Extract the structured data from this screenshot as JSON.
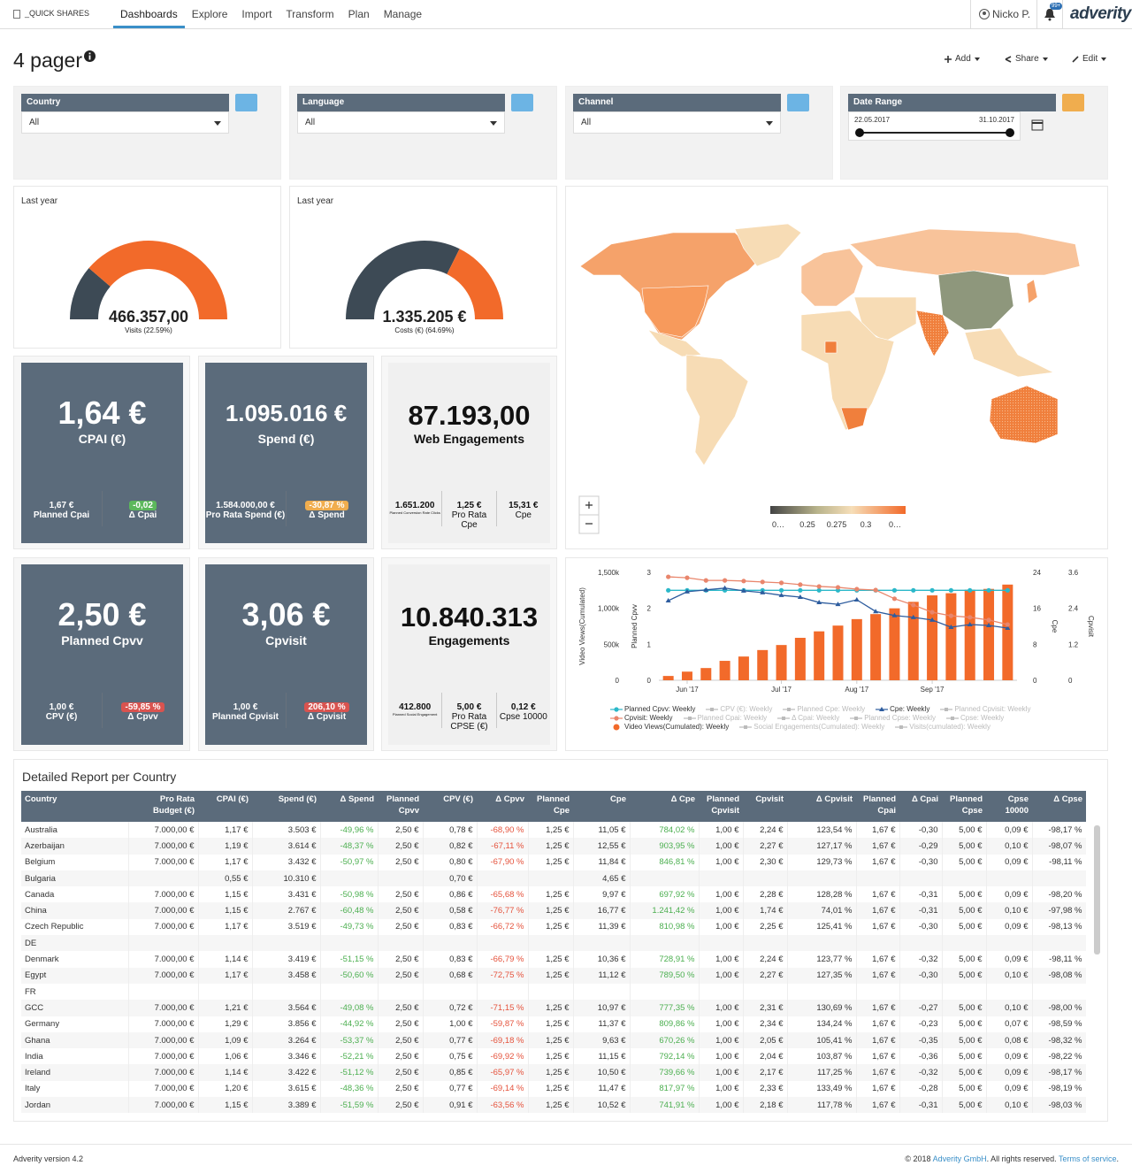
{
  "nav": {
    "brand": "_QUICK SHARES",
    "tabs": [
      "Dashboards",
      "Explore",
      "Import",
      "Transform",
      "Plan",
      "Manage"
    ],
    "user": "Nicko P.",
    "badge": "99+",
    "logo": "adverity"
  },
  "header": {
    "title": "4 pager",
    "actions": [
      "Add",
      "Share",
      "Edit"
    ]
  },
  "filters": [
    {
      "label": "Country",
      "value": "All"
    },
    {
      "label": "Language",
      "value": "All"
    },
    {
      "label": "Channel",
      "value": "All"
    }
  ],
  "date_range": {
    "label": "Date Range",
    "start": "22.05.2017",
    "end": "31.10.2017"
  },
  "gauges": [
    {
      "caption": "Last year",
      "value": "466.357,00",
      "label": "Visits (22.59%)",
      "percent": 22.59
    },
    {
      "caption": "Last year",
      "value": "1.335.205 €",
      "label": "Costs (€) (64.69%)",
      "percent": 64.69
    }
  ],
  "tiles": [
    {
      "value": "1,64 €",
      "label": "CPAI (€)",
      "style": "dark",
      "items": [
        {
          "value": "1,67 €",
          "label": "Planned Cpai"
        },
        {
          "value": "-0,02",
          "label": "Δ Cpai",
          "badge": "green"
        }
      ]
    },
    {
      "value": "1.095.016 €",
      "label": "Spend (€)",
      "style": "dark",
      "items": [
        {
          "value": "1.584.000,00 €",
          "label": "Pro Rata Spend (€)"
        },
        {
          "value": "-30,87 %",
          "label": "Δ Spend",
          "badge": "orange"
        }
      ]
    },
    {
      "value": "87.193,00",
      "label": "Web Engagements",
      "style": "light",
      "items": [
        {
          "value": "1.651.200",
          "label": "Planned Conversion Rate Clicks",
          "small": true
        },
        {
          "value": "1,25 €",
          "label": "Pro Rata Cpe"
        },
        {
          "value": "15,31 €",
          "label": "Cpe"
        }
      ]
    },
    {
      "value": "2,50 €",
      "label": "Planned Cpvv",
      "style": "dark",
      "items": [
        {
          "value": "1,00 €",
          "label": "CPV (€)"
        },
        {
          "value": "-59,85 %",
          "label": "Δ Cpvv",
          "badge": "red"
        }
      ]
    },
    {
      "value": "3,06 €",
      "label": "Cpvisit",
      "style": "dark",
      "items": [
        {
          "value": "1,00 €",
          "label": "Planned Cpvisit"
        },
        {
          "value": "206,10 %",
          "label": "Δ Cpvisit",
          "badge": "red"
        }
      ]
    },
    {
      "value": "10.840.313",
      "label": "Engagements",
      "style": "light",
      "items": [
        {
          "value": "412.800",
          "label": "Planned Social Engagement",
          "small": true
        },
        {
          "value": "5,00 €",
          "label": "Pro Rata CPSE (€)"
        },
        {
          "value": "0,12 €",
          "label": "Cpse 10000"
        }
      ]
    }
  ],
  "map": {
    "scale_labels": [
      "0…",
      "0.25",
      "0.275",
      "0.3",
      "0…"
    ]
  },
  "chart_data": {
    "type": "bar_line",
    "categories": [
      null,
      "Jun '17",
      null,
      null,
      null,
      null,
      "Jul '17",
      null,
      null,
      null,
      "Aug '17",
      null,
      null,
      null,
      "Sep '17",
      null,
      null,
      null,
      null
    ],
    "ylim": [
      0,
      1500000
    ],
    "yticks": [
      0,
      {
        "value": 500000,
        "label": "500k"
      },
      {
        "value": 1000000,
        "label": "1,000k"
      },
      {
        "value": 1500000,
        "label": "1,500k"
      }
    ],
    "ylabel": "Video Views(Cumulated)",
    "y2lim": [
      0,
      3
    ],
    "y2ticks": [
      0,
      1,
      2,
      3
    ],
    "y2label": "Planned Cpvv",
    "y3lim": [
      0,
      24
    ],
    "y3ticks": [
      0,
      8,
      16,
      24
    ],
    "y3label": "Cpe",
    "y4lim": [
      0,
      3.6
    ],
    "y4ticks": [
      0,
      1.2,
      2.4,
      3.6
    ],
    "y4label": "Cpvisit",
    "grid": false,
    "series": [
      {
        "name": "Planned Cpvv: Weekly",
        "color": "#2bb8c9",
        "kind": "line",
        "marker": "circle",
        "axis": "y2",
        "visible": true,
        "values": [
          2.5,
          2.5,
          2.5,
          2.5,
          2.5,
          2.5,
          2.5,
          2.5,
          2.5,
          2.5,
          2.5,
          2.5,
          2.5,
          2.5,
          2.5,
          2.5,
          2.5,
          2.5,
          2.5
        ]
      },
      {
        "name": "CPV (€): Weekly",
        "visible": false
      },
      {
        "name": "Planned Cpe: Weekly",
        "visible": false
      },
      {
        "name": "Cpe: Weekly",
        "color": "#2d5c9e",
        "kind": "line",
        "marker": "triangle",
        "axis": "y3",
        "visible": true,
        "values": [
          17.7,
          19.7,
          20.1,
          20.5,
          19.9,
          19.5,
          18.9,
          18.5,
          17.3,
          16.9,
          17.9,
          15.3,
          14.4,
          14.0,
          13.4,
          11.8,
          12.4,
          12.2,
          11.6
        ]
      },
      {
        "name": "Planned Cpvisit: Weekly",
        "visible": false
      },
      {
        "name": "Cpvisit: Weekly",
        "color": "#e9866c",
        "kind": "line",
        "marker": "circle",
        "axis": "y4",
        "visible": true,
        "values": [
          3.45,
          3.42,
          3.33,
          3.33,
          3.31,
          3.28,
          3.25,
          3.19,
          3.13,
          3.1,
          3.04,
          3.01,
          2.72,
          2.51,
          2.27,
          2.15,
          2.1,
          2.01,
          1.86
        ]
      },
      {
        "name": "Planned Cpai: Weekly",
        "visible": false
      },
      {
        "name": "Δ Cpai: Weekly",
        "visible": false
      },
      {
        "name": "Planned Cpse: Weekly",
        "visible": false
      },
      {
        "name": "Cpse: Weekly",
        "visible": false
      },
      {
        "name": "Video Views(Cumulated): Weekly",
        "color": "#f26a2a",
        "kind": "bar",
        "marker": "circle",
        "axis": "y",
        "visible": true,
        "values": [
          60000,
          120000,
          170000,
          270000,
          330000,
          420000,
          490000,
          590000,
          680000,
          760000,
          850000,
          920000,
          1000000,
          1090000,
          1180000,
          1210000,
          1260000,
          1270000,
          1330000
        ]
      },
      {
        "name": "Social Engagements(Cumulated): Weekly",
        "visible": false
      },
      {
        "name": "Visits(cumulated): Weekly",
        "visible": false
      }
    ]
  },
  "table": {
    "title": "Detailed Report per Country",
    "columns": [
      "Country",
      "Pro Rata Budget (€)",
      "CPAI (€)",
      "Spend (€)",
      "Δ Spend",
      "Planned Cpvv",
      "CPV (€)",
      "Δ Cpvv",
      "Planned Cpe",
      "Cpe",
      "Δ Cpe",
      "Planned Cpvisit",
      "Cpvisit",
      "Δ Cpvisit",
      "Planned Cpai",
      "Δ Cpai",
      "Planned Cpse",
      "Cpse 10000",
      "Δ Cpse"
    ],
    "rows": [
      [
        "Australia",
        "7.000,00 €",
        "1,17 €",
        "3.503 €",
        "-49,96 %",
        "2,50 €",
        "0,78 €",
        "-68,90 %",
        "1,25 €",
        "11,05 €",
        "784,02 %",
        "1,00 €",
        "2,24 €",
        "123,54 %",
        "1,67 €",
        "-0,30",
        "5,00 €",
        "0,09 €",
        "-98,17 %"
      ],
      [
        "Azerbaijan",
        "7.000,00 €",
        "1,19 €",
        "3.614 €",
        "-48,37 %",
        "2,50 €",
        "0,82 €",
        "-67,11 %",
        "1,25 €",
        "12,55 €",
        "903,95 %",
        "1,00 €",
        "2,27 €",
        "127,17 %",
        "1,67 €",
        "-0,29",
        "5,00 €",
        "0,10 €",
        "-98,07 %"
      ],
      [
        "Belgium",
        "7.000,00 €",
        "1,17 €",
        "3.432 €",
        "-50,97 %",
        "2,50 €",
        "0,80 €",
        "-67,90 %",
        "1,25 €",
        "11,84 €",
        "846,81 %",
        "1,00 €",
        "2,30 €",
        "129,73 %",
        "1,67 €",
        "-0,30",
        "5,00 €",
        "0,09 €",
        "-98,11 %"
      ],
      [
        "Bulgaria",
        null,
        "0,55 €",
        "10.310 €",
        null,
        null,
        "0,70 €",
        null,
        null,
        "4,65 €",
        null,
        null,
        null,
        null,
        null,
        null,
        null,
        null,
        null
      ],
      [
        "Canada",
        "7.000,00 €",
        "1,15 €",
        "3.431 €",
        "-50,98 %",
        "2,50 €",
        "0,86 €",
        "-65,68 %",
        "1,25 €",
        "9,97 €",
        "697,92 %",
        "1,00 €",
        "2,28 €",
        "128,28 %",
        "1,67 €",
        "-0,31",
        "5,00 €",
        "0,09 €",
        "-98,20 %"
      ],
      [
        "China",
        "7.000,00 €",
        "1,15 €",
        "2.767 €",
        "-60,48 %",
        "2,50 €",
        "0,58 €",
        "-76,77 %",
        "1,25 €",
        "16,77 €",
        "1.241,42 %",
        "1,00 €",
        "1,74 €",
        "74,01 %",
        "1,67 €",
        "-0,31",
        "5,00 €",
        "0,10 €",
        "-97,98 %"
      ],
      [
        "Czech Republic",
        "7.000,00 €",
        "1,17 €",
        "3.519 €",
        "-49,73 %",
        "2,50 €",
        "0,83 €",
        "-66,72 %",
        "1,25 €",
        "11,39 €",
        "810,98 %",
        "1,00 €",
        "2,25 €",
        "125,41 %",
        "1,67 €",
        "-0,30",
        "5,00 €",
        "0,09 €",
        "-98,13 %"
      ],
      [
        "DE",
        null,
        null,
        null,
        null,
        null,
        null,
        null,
        null,
        null,
        null,
        null,
        null,
        null,
        null,
        null,
        null,
        null,
        null
      ],
      [
        "Denmark",
        "7.000,00 €",
        "1,14 €",
        "3.419 €",
        "-51,15 %",
        "2,50 €",
        "0,83 €",
        "-66,79 %",
        "1,25 €",
        "10,36 €",
        "728,91 %",
        "1,00 €",
        "2,24 €",
        "123,77 %",
        "1,67 €",
        "-0,32",
        "5,00 €",
        "0,09 €",
        "-98,11 %"
      ],
      [
        "Egypt",
        "7.000,00 €",
        "1,17 €",
        "3.458 €",
        "-50,60 %",
        "2,50 €",
        "0,68 €",
        "-72,75 %",
        "1,25 €",
        "11,12 €",
        "789,50 %",
        "1,00 €",
        "2,27 €",
        "127,35 %",
        "1,67 €",
        "-0,30",
        "5,00 €",
        "0,10 €",
        "-98,08 %"
      ],
      [
        "FR",
        null,
        null,
        null,
        null,
        null,
        null,
        null,
        null,
        null,
        null,
        null,
        null,
        null,
        null,
        null,
        null,
        null,
        null
      ],
      [
        "GCC",
        "7.000,00 €",
        "1,21 €",
        "3.564 €",
        "-49,08 %",
        "2,50 €",
        "0,72 €",
        "-71,15 %",
        "1,25 €",
        "10,97 €",
        "777,35 %",
        "1,00 €",
        "2,31 €",
        "130,69 %",
        "1,67 €",
        "-0,27",
        "5,00 €",
        "0,10 €",
        "-98,00 %"
      ],
      [
        "Germany",
        "7.000,00 €",
        "1,29 €",
        "3.856 €",
        "-44,92 %",
        "2,50 €",
        "1,00 €",
        "-59,87 %",
        "1,25 €",
        "11,37 €",
        "809,86 %",
        "1,00 €",
        "2,34 €",
        "134,24 %",
        "1,67 €",
        "-0,23",
        "5,00 €",
        "0,07 €",
        "-98,59 %"
      ],
      [
        "Ghana",
        "7.000,00 €",
        "1,09 €",
        "3.264 €",
        "-53,37 %",
        "2,50 €",
        "0,77 €",
        "-69,18 %",
        "1,25 €",
        "9,63 €",
        "670,26 %",
        "1,00 €",
        "2,05 €",
        "105,41 %",
        "1,67 €",
        "-0,35",
        "5,00 €",
        "0,08 €",
        "-98,32 %"
      ],
      [
        "India",
        "7.000,00 €",
        "1,06 €",
        "3.346 €",
        "-52,21 %",
        "2,50 €",
        "0,75 €",
        "-69,92 %",
        "1,25 €",
        "11,15 €",
        "792,14 %",
        "1,00 €",
        "2,04 €",
        "103,87 %",
        "1,67 €",
        "-0,36",
        "5,00 €",
        "0,09 €",
        "-98,22 %"
      ],
      [
        "Ireland",
        "7.000,00 €",
        "1,14 €",
        "3.422 €",
        "-51,12 %",
        "2,50 €",
        "0,85 €",
        "-65,97 %",
        "1,25 €",
        "10,50 €",
        "739,66 %",
        "1,00 €",
        "2,17 €",
        "117,25 %",
        "1,67 €",
        "-0,32",
        "5,00 €",
        "0,09 €",
        "-98,17 %"
      ],
      [
        "Italy",
        "7.000,00 €",
        "1,20 €",
        "3.615 €",
        "-48,36 %",
        "2,50 €",
        "0,77 €",
        "-69,14 %",
        "1,25 €",
        "11,47 €",
        "817,97 %",
        "1,00 €",
        "2,33 €",
        "133,49 %",
        "1,67 €",
        "-0,28",
        "5,00 €",
        "0,09 €",
        "-98,19 %"
      ],
      [
        "Jordan",
        "7.000,00 €",
        "1,15 €",
        "3.389 €",
        "-51,59 %",
        "2,50 €",
        "0,91 €",
        "-63,56 %",
        "1,25 €",
        "10,52 €",
        "741,91 %",
        "1,00 €",
        "2,18 €",
        "117,78 %",
        "1,67 €",
        "-0,31",
        "5,00 €",
        "0,10 €",
        "-98,03 %"
      ]
    ]
  },
  "footer": {
    "version": "Adverity version 4.2",
    "copyright": "© 2018",
    "company": "Adverity GmbH",
    "rights": ". All rights reserved.",
    "terms": "Terms of service",
    "end": "."
  }
}
